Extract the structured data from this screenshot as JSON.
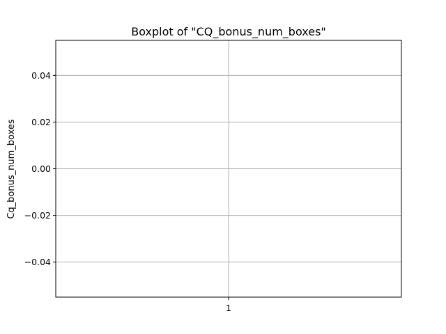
{
  "chart_data": {
    "type": "box",
    "title": "Boxplot of \"CQ_bonus_num_boxes\"",
    "xlabel": "",
    "ylabel": "Cq_bonus_num_boxes",
    "categories": [
      "1"
    ],
    "series": [
      {
        "values": []
      }
    ],
    "ylim": [
      -0.055,
      0.055
    ],
    "yticks": [
      0.04,
      0.02,
      0.0,
      -0.02,
      -0.04
    ],
    "ytick_labels": [
      "0.04",
      "0.02",
      "0.00",
      "−0.02",
      "−0.04"
    ],
    "grid": true,
    "colors": {
      "grid": "#b0b0b0",
      "axes": "#000000"
    }
  }
}
